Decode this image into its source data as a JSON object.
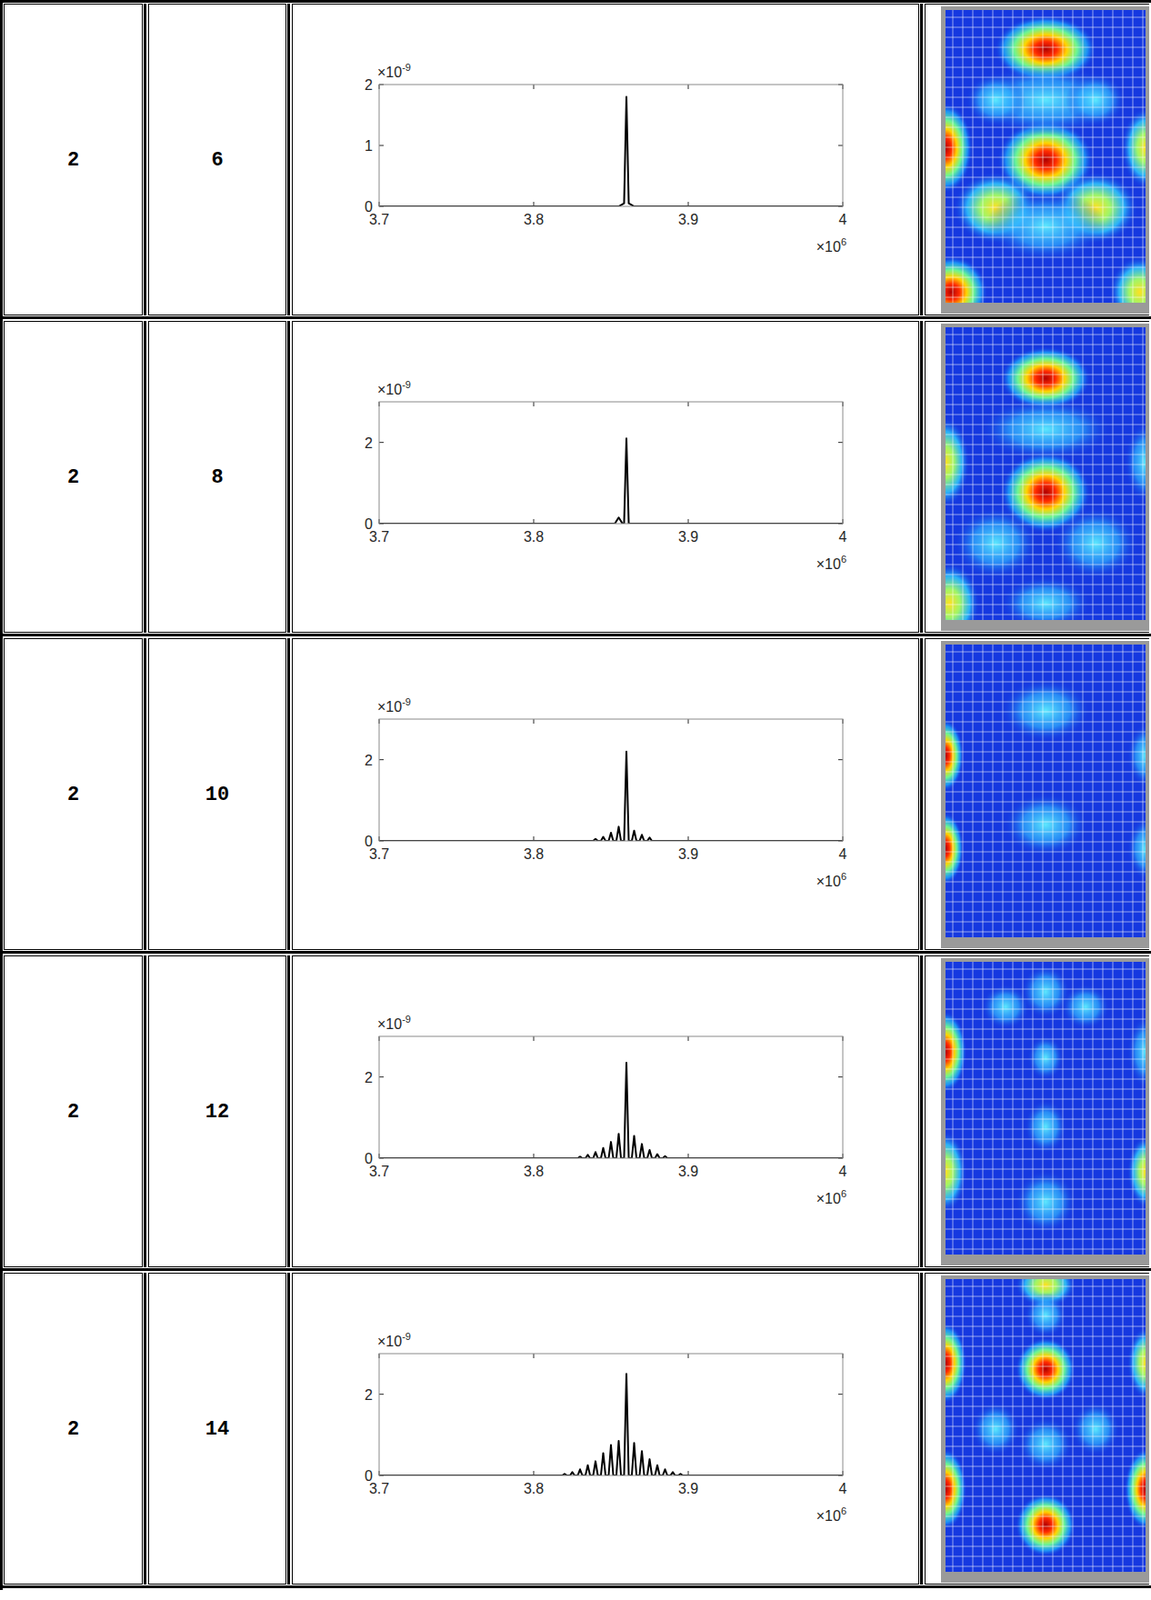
{
  "table": {
    "rows": [
      [
        "2",
        "6"
      ],
      [
        "2",
        "8"
      ],
      [
        "2",
        "10"
      ],
      [
        "2",
        "12"
      ],
      [
        "2",
        "14"
      ]
    ]
  },
  "chart_data": [
    {
      "type": "line",
      "color": "#000000",
      "x": [
        3.7,
        3.855,
        3.8585,
        3.86,
        3.8615,
        3.865,
        4
      ],
      "values": [
        0,
        0,
        0.05,
        1.8,
        0.05,
        0,
        0
      ],
      "xlim": [
        3.7,
        4
      ],
      "ylim": [
        0,
        2
      ],
      "xticks": [
        3.7,
        3.8,
        3.9,
        4
      ],
      "yticks": [
        0,
        1,
        2
      ],
      "x_factor": {
        "base": "×10",
        "exponent": "6"
      },
      "y_factor": {
        "base": "×10",
        "exponent": "-9"
      }
    },
    {
      "type": "line",
      "color": "#000000",
      "x": [
        3.7,
        3.8525,
        3.855,
        3.8575,
        3.8585,
        3.86,
        3.8615,
        4
      ],
      "values": [
        0,
        0,
        0.15,
        0,
        0,
        2.1,
        0,
        0
      ],
      "xlim": [
        3.7,
        4
      ],
      "ylim": [
        0,
        3
      ],
      "xticks": [
        3.7,
        3.8,
        3.9,
        4
      ],
      "yticks": [
        0,
        2
      ],
      "x_factor": {
        "base": "×10",
        "exponent": "6"
      },
      "y_factor": {
        "base": "×10",
        "exponent": "-9"
      }
    },
    {
      "type": "line",
      "color": "#000000",
      "x": [
        3.7,
        3.8385,
        3.84,
        3.8415,
        3.8435,
        3.845,
        3.8465,
        3.8485,
        3.85,
        3.8515,
        3.8535,
        3.855,
        3.8565,
        3.8585,
        3.86,
        3.8615,
        3.8635,
        3.865,
        3.8665,
        3.8685,
        3.87,
        3.8715,
        3.8735,
        3.875,
        3.8765,
        4
      ],
      "values": [
        0,
        0,
        0.05,
        0,
        0,
        0.1,
        0,
        0,
        0.2,
        0,
        0,
        0.35,
        0,
        0,
        2.2,
        0,
        0,
        0.25,
        0,
        0,
        0.15,
        0,
        0,
        0.08,
        0,
        0
      ],
      "xlim": [
        3.7,
        4
      ],
      "ylim": [
        0,
        3
      ],
      "xticks": [
        3.7,
        3.8,
        3.9,
        4
      ],
      "yticks": [
        0,
        2
      ],
      "x_factor": {
        "base": "×10",
        "exponent": "6"
      },
      "y_factor": {
        "base": "×10",
        "exponent": "-9"
      }
    },
    {
      "type": "line",
      "color": "#000000",
      "x": [
        3.7,
        3.8285,
        3.83,
        3.8315,
        3.8335,
        3.835,
        3.8365,
        3.8385,
        3.84,
        3.8415,
        3.8435,
        3.845,
        3.8465,
        3.8485,
        3.85,
        3.8515,
        3.8535,
        3.855,
        3.8565,
        3.8585,
        3.86,
        3.8615,
        3.8635,
        3.865,
        3.8665,
        3.8685,
        3.87,
        3.8715,
        3.8735,
        3.875,
        3.8765,
        3.8785,
        3.88,
        3.8815,
        3.8835,
        3.885,
        3.8865,
        4
      ],
      "values": [
        0,
        0,
        0.04,
        0,
        0,
        0.08,
        0,
        0,
        0.15,
        0,
        0,
        0.25,
        0,
        0,
        0.4,
        0,
        0,
        0.6,
        0,
        0,
        2.35,
        0,
        0,
        0.55,
        0,
        0,
        0.35,
        0,
        0,
        0.2,
        0,
        0,
        0.1,
        0,
        0,
        0.05,
        0,
        0
      ],
      "xlim": [
        3.7,
        4
      ],
      "ylim": [
        0,
        3
      ],
      "xticks": [
        3.7,
        3.8,
        3.9,
        4
      ],
      "yticks": [
        0,
        2
      ],
      "x_factor": {
        "base": "×10",
        "exponent": "6"
      },
      "y_factor": {
        "base": "×10",
        "exponent": "-9"
      }
    },
    {
      "type": "line",
      "color": "#000000",
      "x": [
        3.7,
        3.8185,
        3.82,
        3.8215,
        3.8235,
        3.825,
        3.8265,
        3.8285,
        3.83,
        3.8315,
        3.8335,
        3.835,
        3.8365,
        3.8385,
        3.84,
        3.8415,
        3.8435,
        3.845,
        3.8465,
        3.8485,
        3.85,
        3.8515,
        3.8535,
        3.855,
        3.8565,
        3.8585,
        3.86,
        3.8615,
        3.8635,
        3.865,
        3.8665,
        3.8685,
        3.87,
        3.8715,
        3.8735,
        3.875,
        3.8765,
        3.8785,
        3.88,
        3.8815,
        3.8835,
        3.885,
        3.8865,
        3.8885,
        3.89,
        3.8915,
        3.8935,
        3.895,
        3.8965,
        4
      ],
      "values": [
        0,
        0,
        0.04,
        0,
        0,
        0.08,
        0,
        0,
        0.15,
        0,
        0,
        0.25,
        0,
        0,
        0.35,
        0,
        0,
        0.55,
        0,
        0,
        0.75,
        0,
        0,
        0.85,
        0,
        0,
        2.5,
        0,
        0,
        0.8,
        0,
        0,
        0.6,
        0,
        0,
        0.4,
        0,
        0,
        0.25,
        0,
        0,
        0.15,
        0,
        0,
        0.08,
        0,
        0,
        0.04,
        0,
        0
      ],
      "xlim": [
        3.7,
        4
      ],
      "ylim": [
        0,
        3
      ],
      "xticks": [
        3.7,
        3.8,
        3.9,
        4
      ],
      "yticks": [
        0,
        2
      ],
      "x_factor": {
        "base": "×10",
        "exponent": "6"
      },
      "y_factor": {
        "base": "×10",
        "exponent": "-9"
      }
    }
  ]
}
